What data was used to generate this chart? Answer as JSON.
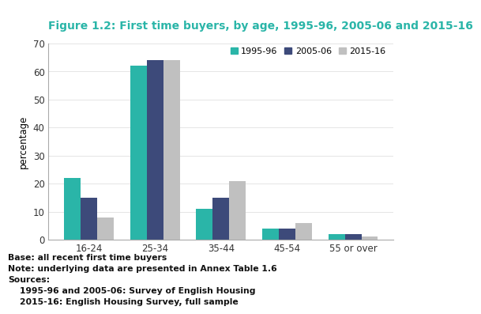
{
  "title": "Figure 1.2: First time buyers, by age, 1995-96, 2005-06 and 2015-16",
  "categories": [
    "16-24",
    "25-34",
    "35-44",
    "45-54",
    "55 or over"
  ],
  "series": {
    "1995-96": [
      22,
      62,
      11,
      4,
      2
    ],
    "2005-06": [
      15,
      64,
      15,
      4,
      2
    ],
    "2015-16": [
      8,
      64,
      21,
      6,
      1
    ]
  },
  "colors": {
    "1995-96": "#2ab5a8",
    "2005-06": "#3d4a7a",
    "2015-16": "#c0c0c0"
  },
  "ylabel": "percentage",
  "ylim": [
    0,
    70
  ],
  "yticks": [
    0,
    10,
    20,
    30,
    40,
    50,
    60,
    70
  ],
  "legend_labels": [
    "1995-96",
    "2005-06",
    "2015-16"
  ],
  "footnote_lines": [
    "Base: all recent first time buyers",
    "Note: underlying data are presented in Annex Table 1.6",
    "Sources:",
    "    1995-96 and 2005-06: Survey of English Housing",
    "    2015-16: English Housing Survey, full sample"
  ],
  "title_color": "#2ab5a8",
  "title_fontsize": 10,
  "bar_width": 0.25,
  "background_color": "#ffffff"
}
